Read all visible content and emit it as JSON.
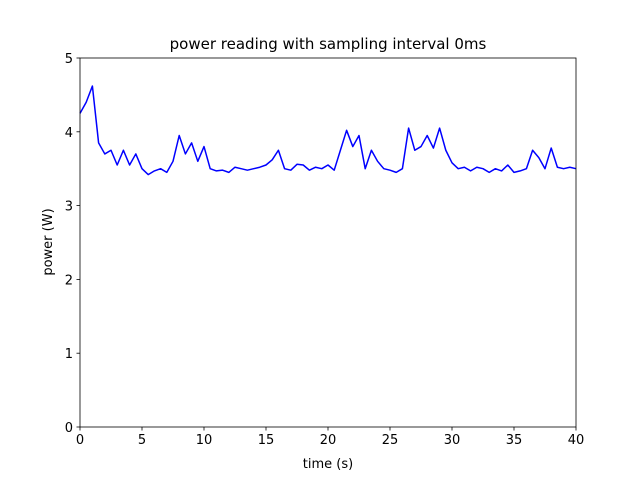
{
  "chart_data": {
    "type": "line",
    "title": "power reading with sampling interval 0ms",
    "x_label": "time (s)",
    "y_label": "power (W)",
    "x": [
      0,
      0.5,
      1,
      1.5,
      2,
      2.5,
      3,
      3.5,
      4,
      4.5,
      5,
      5.5,
      6,
      6.5,
      7,
      7.5,
      8,
      8.5,
      9,
      9.5,
      10,
      10.5,
      11,
      11.5,
      12,
      12.5,
      13,
      13.5,
      14,
      14.5,
      15,
      15.5,
      16,
      16.5,
      17,
      17.5,
      18,
      18.5,
      19,
      19.5,
      20,
      20.5,
      21,
      21.5,
      22,
      22.5,
      23,
      23.5,
      24,
      24.5,
      25,
      25.5,
      26,
      26.5,
      27,
      27.5,
      28,
      28.5,
      29,
      29.5,
      30,
      30.5,
      31,
      31.5,
      32,
      32.5,
      33,
      33.5,
      34,
      34.5,
      35,
      35.5,
      36,
      36.5,
      37,
      37.5,
      38,
      38.5,
      39,
      39.5,
      40
    ],
    "series": [
      {
        "color": "#0000ff",
        "values": [
          4.25,
          4.4,
          4.62,
          3.85,
          3.7,
          3.75,
          3.55,
          3.75,
          3.55,
          3.7,
          3.5,
          3.42,
          3.47,
          3.5,
          3.45,
          3.6,
          3.95,
          3.7,
          3.85,
          3.6,
          3.8,
          3.5,
          3.47,
          3.48,
          3.45,
          3.52,
          3.5,
          3.48,
          3.5,
          3.52,
          3.55,
          3.62,
          3.75,
          3.5,
          3.48,
          3.56,
          3.55,
          3.48,
          3.52,
          3.5,
          3.55,
          3.48,
          3.75,
          4.02,
          3.8,
          3.95,
          3.5,
          3.75,
          3.6,
          3.5,
          3.48,
          3.45,
          3.5,
          4.05,
          3.75,
          3.8,
          3.95,
          3.78,
          4.05,
          3.75,
          3.58,
          3.5,
          3.52,
          3.47,
          3.52,
          3.5,
          3.45,
          3.5,
          3.47,
          3.55,
          3.45,
          3.47,
          3.5,
          3.75,
          3.65,
          3.5,
          3.78,
          3.52,
          3.5,
          3.52,
          3.5
        ]
      }
    ],
    "xlim": [
      0,
      40
    ],
    "xticks": [
      0,
      5,
      10,
      15,
      20,
      25,
      30,
      35,
      40
    ],
    "ylim": [
      0,
      5
    ],
    "yticks": [
      0,
      1,
      2,
      3,
      4,
      5
    ]
  }
}
